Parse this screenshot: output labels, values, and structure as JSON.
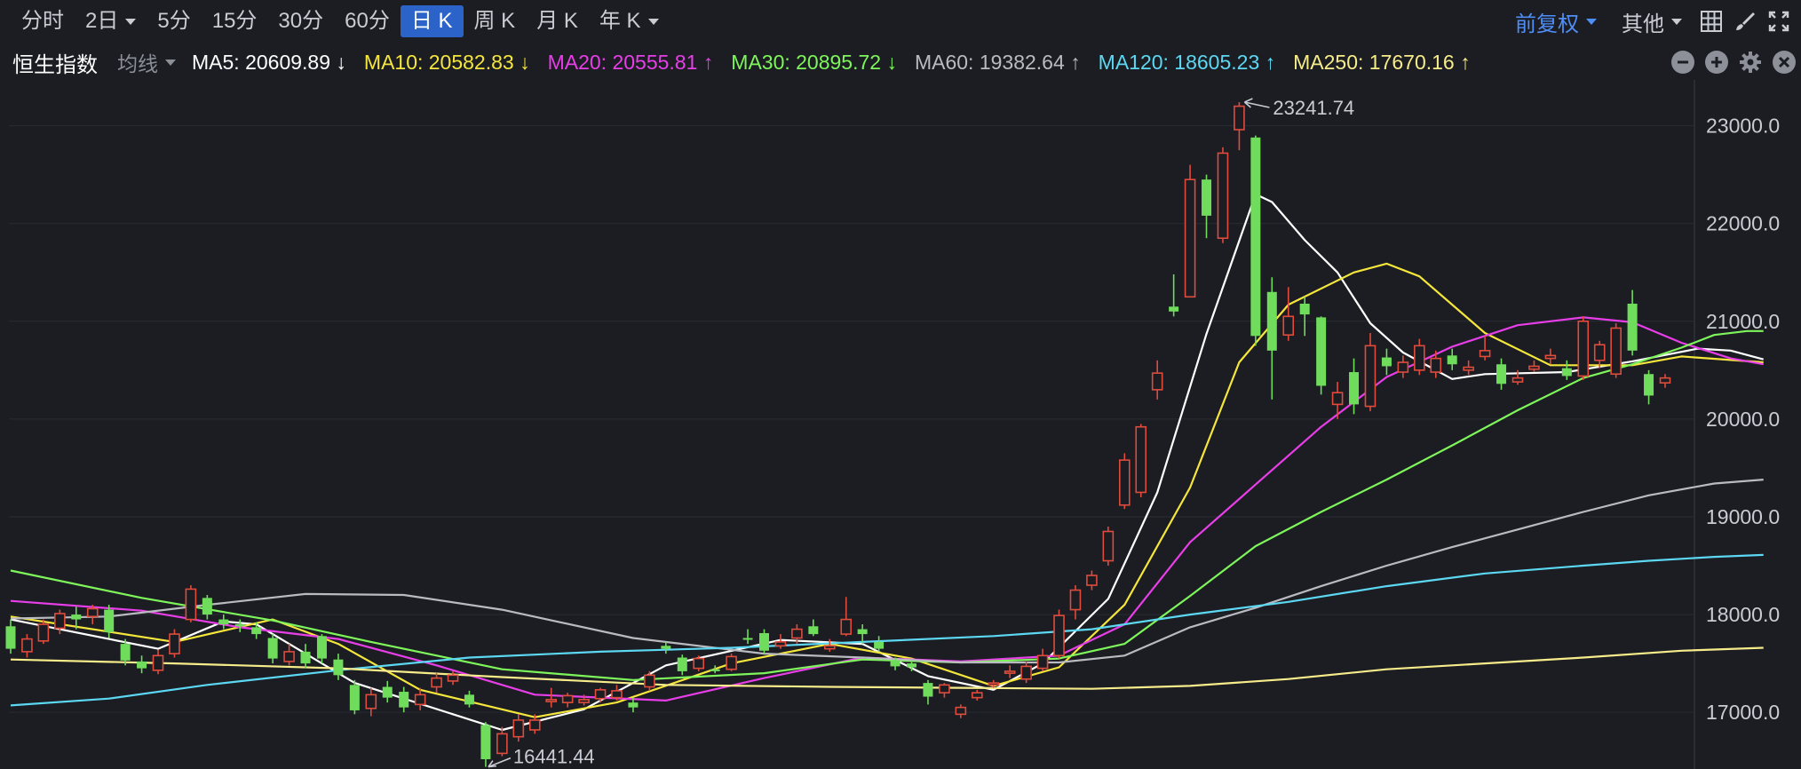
{
  "timeframes": [
    {
      "label": "分时",
      "dropdown": false,
      "active": false
    },
    {
      "label": "2日",
      "dropdown": true,
      "active": false
    },
    {
      "label": "5分",
      "dropdown": false,
      "active": false
    },
    {
      "label": "15分",
      "dropdown": false,
      "active": false
    },
    {
      "label": "30分",
      "dropdown": false,
      "active": false
    },
    {
      "label": "60分",
      "dropdown": false,
      "active": false
    },
    {
      "label": "日 K",
      "dropdown": false,
      "active": true
    },
    {
      "label": "周 K",
      "dropdown": false,
      "active": false
    },
    {
      "label": "月 K",
      "dropdown": false,
      "active": false
    },
    {
      "label": "年 K",
      "dropdown": true,
      "active": false
    }
  ],
  "toolbar_right": {
    "adjust": "前复权",
    "other": "其他"
  },
  "ma_bar": {
    "index_name": "恒生指数",
    "ma_type": "均线",
    "items": [
      {
        "text": "MA5: 20609.89 ↓",
        "color": "#ffffff"
      },
      {
        "text": "MA10: 20582.83 ↓",
        "color": "#f5e63c"
      },
      {
        "text": "MA20: 20555.81 ↑",
        "color": "#e83ee8"
      },
      {
        "text": "MA30: 20895.72 ↓",
        "color": "#7ef55a"
      },
      {
        "text": "MA60: 19382.64 ↑",
        "color": "#b9bbc0"
      },
      {
        "text": "MA120: 18605.23 ↑",
        "color": "#5cd8f2"
      },
      {
        "text": "MA250: 17670.16 ↑",
        "color": "#f7ec8a"
      }
    ]
  },
  "chart_data": {
    "type": "candlestick",
    "ylim": [
      16420,
      23360
    ],
    "y_ticks": [
      "23000.0",
      "22000.0",
      "21000.0",
      "20000.0",
      "19000.0",
      "18000.0",
      "17000.0"
    ],
    "y_tick_values": [
      23000,
      22000,
      21000,
      20000,
      19000,
      18000,
      17000
    ],
    "up_color": "#e04b3c",
    "down_color": "#6fdc5c",
    "annotations": [
      {
        "label": "23241.74",
        "value": 23241.74
      },
      {
        "label": "16441.44",
        "value": 16441.44
      }
    ],
    "candles": [
      [
        17880,
        17650,
        17950,
        17600
      ],
      [
        17620,
        17750,
        17800,
        17560
      ],
      [
        17730,
        17900,
        17950,
        17700
      ],
      [
        17860,
        18010,
        18050,
        17800
      ],
      [
        18000,
        17950,
        18080,
        17850
      ],
      [
        17980,
        18060,
        18100,
        17900
      ],
      [
        18050,
        17820,
        18100,
        17760
      ],
      [
        17700,
        17530,
        17750,
        17480
      ],
      [
        17520,
        17450,
        17580,
        17400
      ],
      [
        17430,
        17580,
        17640,
        17390
      ],
      [
        17600,
        17800,
        17850,
        17560
      ],
      [
        17950,
        18260,
        18300,
        17920
      ],
      [
        18170,
        18000,
        18200,
        17950
      ],
      [
        17950,
        17900,
        18000,
        17850
      ],
      [
        17900,
        17880,
        17950,
        17820
      ],
      [
        17870,
        17800,
        17920,
        17750
      ],
      [
        17760,
        17550,
        17800,
        17500
      ],
      [
        17520,
        17620,
        17700,
        17480
      ],
      [
        17620,
        17500,
        17700,
        17450
      ],
      [
        17780,
        17550,
        17800,
        17500
      ],
      [
        17540,
        17380,
        17600,
        17330
      ],
      [
        17280,
        17020,
        17330,
        16980
      ],
      [
        17040,
        17180,
        17250,
        16960
      ],
      [
        17260,
        17150,
        17320,
        17100
      ],
      [
        17210,
        17050,
        17260,
        17000
      ],
      [
        17080,
        17180,
        17250,
        17020
      ],
      [
        17260,
        17350,
        17400,
        17200
      ],
      [
        17320,
        17380,
        17420,
        17280
      ],
      [
        17180,
        17080,
        17220,
        17050
      ],
      [
        16870,
        16520,
        16900,
        16441.44
      ],
      [
        16580,
        16780,
        16850,
        16550
      ],
      [
        16750,
        16920,
        16980,
        16700
      ],
      [
        16820,
        16920,
        16980,
        16780
      ],
      [
        17110,
        17130,
        17250,
        17050
      ],
      [
        17100,
        17170,
        17200,
        17050
      ],
      [
        17100,
        17130,
        17180,
        17070
      ],
      [
        17140,
        17230,
        17250,
        17100
      ],
      [
        17150,
        17220,
        17280,
        17120
      ],
      [
        17100,
        17050,
        17150,
        17000
      ],
      [
        17260,
        17380,
        17420,
        17220
      ],
      [
        17680,
        17650,
        17720,
        17600
      ],
      [
        17560,
        17420,
        17590,
        17380
      ],
      [
        17450,
        17550,
        17580,
        17420
      ],
      [
        17440,
        17420,
        17480,
        17400
      ],
      [
        17440,
        17570,
        17600,
        17420
      ],
      [
        17760,
        17750,
        17850,
        17700
      ],
      [
        17810,
        17630,
        17850,
        17600
      ],
      [
        17680,
        17720,
        17800,
        17650
      ],
      [
        17760,
        17850,
        17900,
        17700
      ],
      [
        17880,
        17800,
        17950,
        17780
      ],
      [
        17650,
        17680,
        17750,
        17620
      ],
      [
        17800,
        17950,
        18180,
        17780
      ],
      [
        17850,
        17800,
        17900,
        17700
      ],
      [
        17720,
        17650,
        17780,
        17620
      ],
      [
        17530,
        17470,
        17560,
        17430
      ],
      [
        17500,
        17460,
        17530,
        17420
      ],
      [
        17300,
        17160,
        17330,
        17080
      ],
      [
        17200,
        17280,
        17300,
        17150
      ],
      [
        16980,
        17050,
        17080,
        16940
      ],
      [
        17150,
        17200,
        17230,
        17120
      ],
      [
        17280,
        17300,
        17330,
        17250
      ],
      [
        17400,
        17420,
        17480,
        17350
      ],
      [
        17340,
        17470,
        17520,
        17300
      ],
      [
        17450,
        17580,
        17650,
        17420
      ],
      [
        17580,
        17990,
        18050,
        17550
      ],
      [
        18050,
        18250,
        18300,
        17950
      ],
      [
        18300,
        18400,
        18450,
        18250
      ],
      [
        18550,
        18850,
        18900,
        18500
      ],
      [
        19120,
        19580,
        19650,
        19080
      ],
      [
        19250,
        19920,
        19950,
        19200
      ],
      [
        20300,
        20470,
        20600,
        20200
      ],
      [
        21150,
        21100,
        21480,
        21050
      ],
      [
        21250,
        22450,
        22600,
        21250
      ],
      [
        22450,
        22080,
        22500,
        21850
      ],
      [
        21850,
        22720,
        22780,
        21800
      ],
      [
        22960,
        23200,
        23241.74,
        22750
      ],
      [
        22880,
        20850,
        22900,
        20750
      ],
      [
        21300,
        20700,
        21450,
        20200
      ],
      [
        20860,
        21050,
        21350,
        20800
      ],
      [
        21180,
        21070,
        21250,
        20850
      ],
      [
        21040,
        20340,
        21050,
        20250
      ],
      [
        20150,
        20270,
        20380,
        20000
      ],
      [
        20480,
        20150,
        20620,
        20050
      ],
      [
        20130,
        20750,
        20880,
        20080
      ],
      [
        20630,
        20540,
        20720,
        20450
      ],
      [
        20480,
        20580,
        20650,
        20420
      ],
      [
        20500,
        20750,
        20820,
        20450
      ],
      [
        20480,
        20620,
        20700,
        20420
      ],
      [
        20650,
        20560,
        20720,
        20500
      ],
      [
        20500,
        20530,
        20600,
        20450
      ],
      [
        20640,
        20700,
        20850,
        20600
      ],
      [
        20560,
        20360,
        20620,
        20300
      ],
      [
        20380,
        20420,
        20500,
        20350
      ],
      [
        20510,
        20540,
        20600,
        20480
      ],
      [
        20620,
        20650,
        20720,
        20560
      ],
      [
        20520,
        20440,
        20600,
        20400
      ],
      [
        20440,
        21000,
        21050,
        20400
      ],
      [
        20600,
        20760,
        20800,
        20520
      ],
      [
        20460,
        20930,
        20980,
        20420
      ],
      [
        21180,
        20700,
        21320,
        20650
      ],
      [
        20460,
        20240,
        20500,
        20150
      ],
      [
        20370,
        20420,
        20460,
        20320
      ]
    ],
    "series": [
      {
        "name": "MA5",
        "color": "#ffffff",
        "points": [
          [
            0,
            17950
          ],
          [
            9,
            17650
          ],
          [
            13,
            17930
          ],
          [
            15,
            17900
          ],
          [
            21,
            17300
          ],
          [
            30,
            16820
          ],
          [
            35,
            17030
          ],
          [
            40,
            17480
          ],
          [
            47,
            17740
          ],
          [
            52,
            17700
          ],
          [
            56,
            17370
          ],
          [
            60,
            17230
          ],
          [
            63,
            17500
          ],
          [
            67,
            18160
          ],
          [
            70,
            19250
          ],
          [
            73,
            20870
          ],
          [
            76,
            22300
          ],
          [
            77,
            22220
          ],
          [
            79,
            21830
          ],
          [
            81,
            21500
          ],
          [
            83,
            20980
          ],
          [
            85,
            20680
          ],
          [
            88,
            20410
          ],
          [
            90,
            20460
          ],
          [
            95,
            20480
          ],
          [
            99,
            20590
          ],
          [
            103,
            20720
          ],
          [
            105,
            20700
          ],
          [
            107,
            20610
          ]
        ]
      },
      {
        "name": "MA10",
        "color": "#f5e63c",
        "points": [
          [
            0,
            17980
          ],
          [
            10,
            17720
          ],
          [
            16,
            17950
          ],
          [
            20,
            17700
          ],
          [
            25,
            17230
          ],
          [
            32,
            16950
          ],
          [
            37,
            17100
          ],
          [
            44,
            17500
          ],
          [
            50,
            17700
          ],
          [
            55,
            17550
          ],
          [
            60,
            17270
          ],
          [
            64,
            17460
          ],
          [
            68,
            18100
          ],
          [
            72,
            19300
          ],
          [
            75,
            20580
          ],
          [
            78,
            21170
          ],
          [
            82,
            21500
          ],
          [
            84,
            21590
          ],
          [
            86,
            21460
          ],
          [
            90,
            20880
          ],
          [
            94,
            20550
          ],
          [
            99,
            20550
          ],
          [
            102,
            20640
          ],
          [
            107,
            20580
          ]
        ]
      },
      {
        "name": "MA20",
        "color": "#e83ee8",
        "points": [
          [
            0,
            18140
          ],
          [
            8,
            18040
          ],
          [
            14,
            17870
          ],
          [
            20,
            17750
          ],
          [
            26,
            17480
          ],
          [
            32,
            17180
          ],
          [
            40,
            17120
          ],
          [
            46,
            17350
          ],
          [
            52,
            17560
          ],
          [
            58,
            17520
          ],
          [
            64,
            17580
          ],
          [
            68,
            17900
          ],
          [
            72,
            18740
          ],
          [
            76,
            19330
          ],
          [
            80,
            19920
          ],
          [
            84,
            20430
          ],
          [
            88,
            20740
          ],
          [
            92,
            20960
          ],
          [
            96,
            21040
          ],
          [
            99,
            20990
          ],
          [
            102,
            20780
          ],
          [
            105,
            20620
          ],
          [
            107,
            20560
          ]
        ]
      },
      {
        "name": "MA30",
        "color": "#7ef55a",
        "points": [
          [
            0,
            18450
          ],
          [
            8,
            18170
          ],
          [
            16,
            17940
          ],
          [
            22,
            17720
          ],
          [
            30,
            17440
          ],
          [
            38,
            17330
          ],
          [
            46,
            17400
          ],
          [
            52,
            17540
          ],
          [
            58,
            17510
          ],
          [
            64,
            17550
          ],
          [
            68,
            17700
          ],
          [
            72,
            18190
          ],
          [
            76,
            18700
          ],
          [
            80,
            19050
          ],
          [
            84,
            19380
          ],
          [
            88,
            19730
          ],
          [
            92,
            20090
          ],
          [
            96,
            20420
          ],
          [
            99,
            20560
          ],
          [
            102,
            20730
          ],
          [
            104,
            20860
          ],
          [
            106,
            20900
          ],
          [
            107,
            20900
          ]
        ]
      },
      {
        "name": "MA60",
        "color": "#b9bbc0",
        "points": [
          [
            0,
            17960
          ],
          [
            6,
            17980
          ],
          [
            12,
            18100
          ],
          [
            18,
            18210
          ],
          [
            24,
            18200
          ],
          [
            30,
            18050
          ],
          [
            38,
            17760
          ],
          [
            46,
            17600
          ],
          [
            52,
            17560
          ],
          [
            58,
            17510
          ],
          [
            64,
            17510
          ],
          [
            68,
            17580
          ],
          [
            72,
            17870
          ],
          [
            76,
            18070
          ],
          [
            80,
            18290
          ],
          [
            84,
            18500
          ],
          [
            88,
            18690
          ],
          [
            92,
            18870
          ],
          [
            96,
            19050
          ],
          [
            100,
            19220
          ],
          [
            104,
            19340
          ],
          [
            107,
            19380
          ]
        ]
      },
      {
        "name": "MA120",
        "color": "#5cd8f2",
        "points": [
          [
            0,
            17070
          ],
          [
            6,
            17140
          ],
          [
            12,
            17280
          ],
          [
            20,
            17430
          ],
          [
            28,
            17560
          ],
          [
            36,
            17620
          ],
          [
            44,
            17660
          ],
          [
            52,
            17720
          ],
          [
            60,
            17780
          ],
          [
            66,
            17850
          ],
          [
            72,
            18000
          ],
          [
            78,
            18130
          ],
          [
            84,
            18290
          ],
          [
            90,
            18420
          ],
          [
            96,
            18500
          ],
          [
            100,
            18550
          ],
          [
            104,
            18590
          ],
          [
            107,
            18610
          ]
        ]
      },
      {
        "name": "MA250",
        "color": "#f7ec8a",
        "points": [
          [
            0,
            17540
          ],
          [
            10,
            17500
          ],
          [
            20,
            17450
          ],
          [
            30,
            17360
          ],
          [
            40,
            17280
          ],
          [
            50,
            17260
          ],
          [
            58,
            17250
          ],
          [
            66,
            17240
          ],
          [
            72,
            17270
          ],
          [
            78,
            17340
          ],
          [
            84,
            17440
          ],
          [
            90,
            17500
          ],
          [
            96,
            17560
          ],
          [
            102,
            17630
          ],
          [
            107,
            17660
          ]
        ]
      }
    ]
  }
}
